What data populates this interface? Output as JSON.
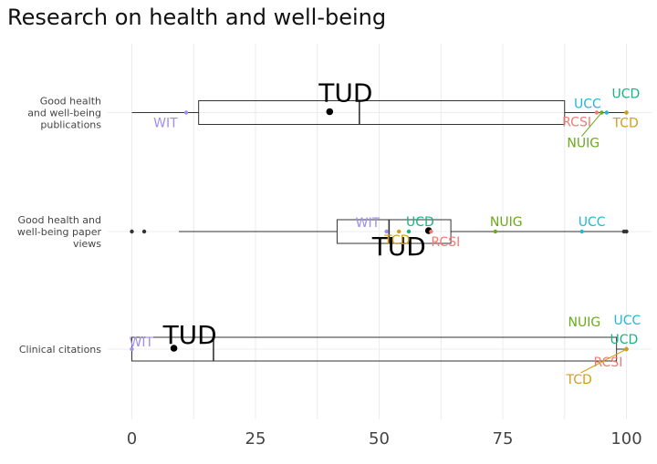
{
  "chart_data": {
    "type": "boxplot",
    "title": "Research on health and well-being",
    "xlabel": "",
    "ylabel": "",
    "xlim": [
      -3,
      105
    ],
    "x_ticks": [
      "0",
      "25",
      "50",
      "75",
      "100"
    ],
    "x_tick_values": [
      0,
      25,
      50,
      75,
      100
    ],
    "grid": true,
    "legend": "none",
    "categories": [
      {
        "label_lines": [
          "Good health",
          "and well-being",
          "publications"
        ],
        "box": {
          "whisker_low": 0,
          "q1": 13.5,
          "median": 46,
          "q3": 87.5,
          "whisker_high": 100
        },
        "outliers": [],
        "points": [
          {
            "name": "TUD",
            "value": 40
          },
          {
            "name": "WIT",
            "value": 11
          },
          {
            "name": "UCC",
            "value": 96
          },
          {
            "name": "UCD",
            "value": 100
          },
          {
            "name": "RCSI",
            "value": 94
          },
          {
            "name": "NUIG",
            "value": 95
          },
          {
            "name": "TCD",
            "value": 100
          }
        ]
      },
      {
        "label_lines": [
          "Good health and",
          "well-being paper",
          "views"
        ],
        "box": {
          "whisker_low": 9.5,
          "q1": 41.5,
          "median": 52,
          "q3": 64.5,
          "whisker_high": 100
        },
        "outliers": [
          0,
          2.5
        ],
        "points": [
          {
            "name": "TUD",
            "value": 60
          },
          {
            "name": "WIT",
            "value": 51.5
          },
          {
            "name": "UCD",
            "value": 56
          },
          {
            "name": "TCD",
            "value": 54
          },
          {
            "name": "RCSI",
            "value": 60.5
          },
          {
            "name": "NUIG",
            "value": 73.5
          },
          {
            "name": "UCC",
            "value": 91
          }
        ]
      },
      {
        "label_lines": [
          "Clinical citations"
        ],
        "box": {
          "whisker_low": 0,
          "q1": 0,
          "median": 16.5,
          "q3": 98,
          "whisker_high": 100
        },
        "outliers": [],
        "points": [
          {
            "name": "TUD",
            "value": 8.5
          },
          {
            "name": "WIT",
            "value": 0
          },
          {
            "name": "UCC",
            "value": 100
          },
          {
            "name": "UCD",
            "value": 100
          },
          {
            "name": "NUIG",
            "value": 100
          },
          {
            "name": "RCSI",
            "value": 100
          },
          {
            "name": "TCD",
            "value": 100
          }
        ]
      }
    ],
    "colors": {
      "TUD": "#000000",
      "WIT": "#9d8ff1",
      "UCC": "#1fb9d6",
      "UCD": "#18b47f",
      "RCSI": "#f07b73",
      "NUIG": "#6aab1c",
      "TCD": "#d39e14",
      "box": "#333333",
      "grid": "#ececec",
      "outlier": "#333333"
    }
  }
}
